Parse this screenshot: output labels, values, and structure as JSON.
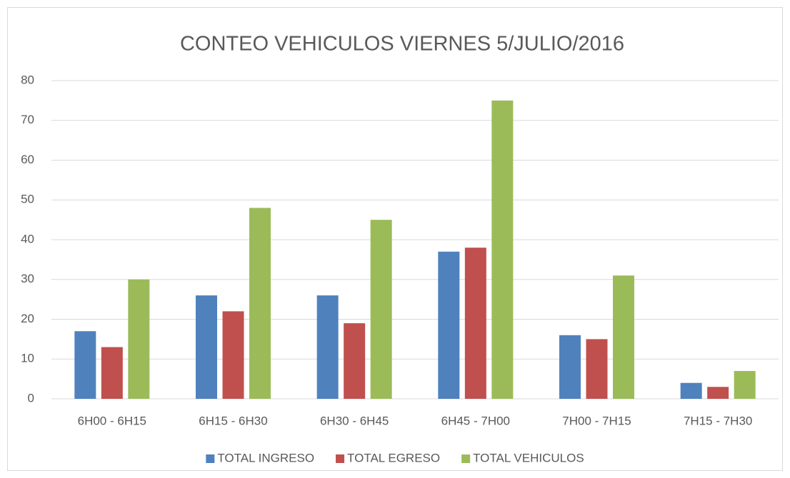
{
  "chart_data": {
    "type": "bar",
    "title": "CONTEO VEHICULOS VIERNES 5/JULIO/2016",
    "categories": [
      "6H00 - 6H15",
      "6H15 - 6H30",
      "6H30 - 6H45",
      "6H45 - 7H00",
      "7H00 - 7H15",
      "7H15 - 7H30"
    ],
    "series": [
      {
        "name": "TOTAL INGRESO",
        "color": "#4f81bd",
        "values": [
          17,
          26,
          26,
          37,
          16,
          4
        ]
      },
      {
        "name": "TOTAL EGRESO",
        "color": "#c0504d",
        "values": [
          13,
          22,
          19,
          38,
          15,
          3
        ]
      },
      {
        "name": "TOTAL VEHICULOS",
        "color": "#9bbb59",
        "values": [
          30,
          48,
          45,
          75,
          31,
          7
        ]
      }
    ],
    "ylim": [
      0,
      80
    ],
    "yticks": [
      0,
      10,
      20,
      30,
      40,
      50,
      60,
      70,
      80
    ],
    "grid": true,
    "legend": "bottom"
  }
}
